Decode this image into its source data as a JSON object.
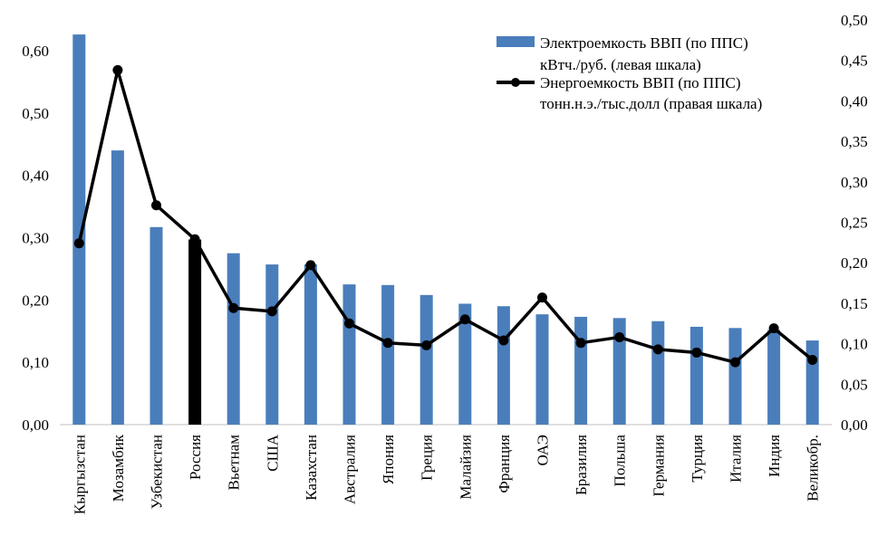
{
  "chart_data": {
    "type": "bar",
    "categories": [
      "Кыргызстан",
      "Мозамбик",
      "Узбекистан",
      "Россия",
      "Вьетнам",
      "США",
      "Казахстан",
      "Австралия",
      "Япония",
      "Греция",
      "Малайзия",
      "Франция",
      "ОАЭ",
      "Бразилия",
      "Польша",
      "Германия",
      "Турция",
      "Италия",
      "Индия",
      "Великобр."
    ],
    "series": [
      {
        "name_line1": "Электроемкость ВВП (по ППС)",
        "name_line2": "кВтч./руб. (левая шкала)",
        "kind": "bar",
        "axis": "left",
        "color": "#4a7ebb",
        "highlight": {
          "category": "Россия",
          "color": "#000000"
        },
        "values": [
          0.626,
          0.44,
          0.317,
          0.297,
          0.275,
          0.257,
          0.257,
          0.225,
          0.224,
          0.208,
          0.194,
          0.19,
          0.177,
          0.173,
          0.171,
          0.166,
          0.157,
          0.155,
          0.152,
          0.135
        ]
      },
      {
        "name_line1": "Энергоемкость ВВП (по ППС)",
        "name_line2": "тонн.н.э./тыс.долл  (правая шкала)",
        "kind": "line",
        "axis": "right",
        "color": "#000000",
        "values": [
          0.224,
          0.438,
          0.271,
          0.229,
          0.144,
          0.14,
          0.197,
          0.125,
          0.101,
          0.098,
          0.13,
          0.104,
          0.157,
          0.101,
          0.108,
          0.093,
          0.089,
          0.077,
          0.119,
          0.08
        ]
      }
    ],
    "left_axis": {
      "min": 0,
      "max": 0.65,
      "ticks": [
        "0,00",
        "0,10",
        "0,20",
        "0,30",
        "0,40",
        "0,50",
        "0,60"
      ]
    },
    "right_axis": {
      "min": 0,
      "max": 0.5,
      "ticks": [
        "0,00",
        "0,05",
        "0,10",
        "0,15",
        "0,20",
        "0,25",
        "0,30",
        "0,35",
        "0,40",
        "0,45",
        "0,50"
      ]
    },
    "grid": false,
    "legend_position": "top-right"
  }
}
